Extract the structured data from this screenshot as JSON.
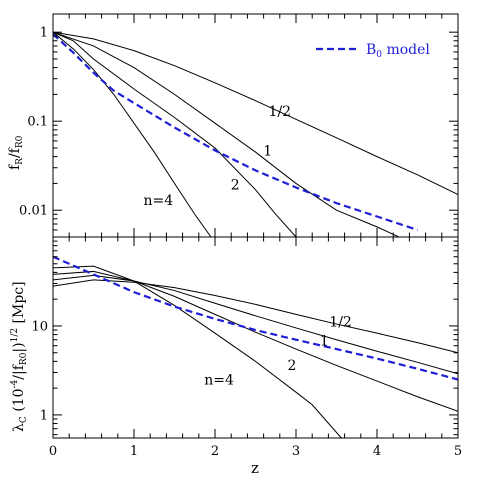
{
  "chart_data": [
    {
      "type": "line",
      "panel": "top",
      "ylabel": "f_R/f_R0",
      "ylabel_main": "f",
      "ylabel_sub1": "R",
      "ylabel_sub2": "R0",
      "yscale": "log",
      "ylim": [
        0.005,
        1.6
      ],
      "xlim": [
        0,
        5
      ],
      "yticks": [
        {
          "value": 1,
          "label": "1"
        },
        {
          "value": 0.1,
          "label": "0.1"
        },
        {
          "value": 0.01,
          "label": "0.01"
        }
      ],
      "legend": {
        "label_main": "B",
        "label_sub": "0",
        "label_rest": " model",
        "placement": "top-right",
        "color": "#1f1fd6"
      },
      "series": [
        {
          "name": "n=1/2",
          "label": "1/2",
          "label_at": [
            2.8,
            0.115
          ],
          "color": "#000000",
          "dashed": false,
          "x": [
            0,
            0.5,
            1,
            1.5,
            2,
            2.5,
            3,
            3.5,
            4,
            4.5,
            5
          ],
          "y": [
            1,
            0.84,
            0.62,
            0.42,
            0.27,
            0.17,
            0.105,
            0.065,
            0.04,
            0.025,
            0.015
          ]
        },
        {
          "name": "n=1",
          "label": "1",
          "label_at": [
            2.65,
            0.041
          ],
          "color": "#000000",
          "dashed": false,
          "x": [
            0,
            0.5,
            1,
            1.5,
            2,
            2.5,
            3,
            3.5,
            4,
            4.5
          ],
          "y": [
            1,
            0.7,
            0.4,
            0.2,
            0.095,
            0.045,
            0.02,
            0.01,
            0.0065,
            0.004
          ]
        },
        {
          "name": "n=2",
          "label": "2",
          "label_at": [
            2.25,
            0.017
          ],
          "color": "#000000",
          "dashed": false,
          "x": [
            0,
            0.25,
            0.5,
            1,
            1.5,
            2,
            2.5,
            2.75,
            3
          ],
          "y": [
            1,
            0.8,
            0.5,
            0.23,
            0.11,
            0.05,
            0.017,
            0.009,
            0.005
          ]
        },
        {
          "name": "n=4",
          "label": "n=4",
          "label_at": [
            1.3,
            0.0115
          ],
          "color": "#000000",
          "dashed": false,
          "x": [
            0,
            0.25,
            0.5,
            0.75,
            1,
            1.25,
            1.5,
            1.75,
            1.95
          ],
          "y": [
            1,
            0.65,
            0.38,
            0.2,
            0.095,
            0.045,
            0.02,
            0.009,
            0.005
          ]
        },
        {
          "name": "B0 model",
          "label": "",
          "color": "#1f1fd6",
          "dashed": true,
          "x": [
            0,
            0.25,
            0.5,
            0.75,
            1,
            1.5,
            2,
            2.5,
            3,
            3.5,
            4,
            4.5
          ],
          "y": [
            0.95,
            0.59,
            0.35,
            0.22,
            0.16,
            0.085,
            0.047,
            0.028,
            0.018,
            0.012,
            0.0085,
            0.006
          ]
        }
      ]
    },
    {
      "type": "line",
      "panel": "bottom",
      "xlabel": "z",
      "ylabel_main": "λ",
      "ylabel_sub1": "C",
      "ylabel_mid": " (10",
      "ylabel_sup1": "-4",
      "ylabel_mid2": "/|f",
      "ylabel_sub2": "R0",
      "ylabel_mid3": "|)",
      "ylabel_sup2": "1/2",
      "ylabel_unit": " [Mpc]",
      "yscale": "log",
      "ylim": [
        0.55,
        100
      ],
      "xlim": [
        0,
        5
      ],
      "yticks": [
        {
          "value": 10,
          "label": "10"
        },
        {
          "value": 1,
          "label": "1"
        }
      ],
      "xticks": [
        {
          "value": 0,
          "label": "0"
        },
        {
          "value": 1,
          "label": "1"
        },
        {
          "value": 2,
          "label": "2"
        },
        {
          "value": 3,
          "label": "3"
        },
        {
          "value": 4,
          "label": "4"
        },
        {
          "value": 5,
          "label": "5"
        }
      ],
      "series": [
        {
          "name": "n=1/2",
          "label": "1/2",
          "label_at": [
            3.55,
            9.9
          ],
          "color": "#000000",
          "dashed": false,
          "x": [
            0,
            0.5,
            1,
            1.5,
            2,
            2.5,
            3,
            3.5,
            4,
            4.5,
            5
          ],
          "y": [
            28,
            33,
            31,
            27,
            22,
            17.5,
            13.5,
            10.5,
            8.3,
            6.5,
            5
          ]
        },
        {
          "name": "n=1",
          "label": "1",
          "label_at": [
            3.35,
            6.0
          ],
          "color": "#000000",
          "dashed": false,
          "x": [
            0,
            0.5,
            1,
            1.5,
            2,
            2.5,
            3,
            3.5,
            4,
            4.5,
            5
          ],
          "y": [
            33,
            37,
            32,
            25,
            18,
            13,
            9.5,
            7,
            5.2,
            3.9,
            2.9
          ]
        },
        {
          "name": "n=2",
          "label": "2",
          "label_at": [
            2.95,
            3.2
          ],
          "color": "#000000",
          "dashed": false,
          "x": [
            0,
            0.5,
            1,
            1.5,
            2,
            2.5,
            3,
            3.5,
            4,
            4.5,
            5
          ],
          "y": [
            38,
            41,
            32,
            21.5,
            13.5,
            8.5,
            5.5,
            3.6,
            2.4,
            1.6,
            1.1
          ]
        },
        {
          "name": "n=4",
          "label": "n=4",
          "label_at": [
            2.05,
            2.2
          ],
          "color": "#000000",
          "dashed": false,
          "x": [
            0,
            0.5,
            1,
            1.5,
            2,
            2.5,
            3,
            3.2,
            3.56
          ],
          "y": [
            45,
            47,
            32,
            17,
            8.3,
            4,
            1.8,
            1.3,
            0.55
          ]
        },
        {
          "name": "B0 model",
          "label": "",
          "color": "#1f1fd6",
          "dashed": true,
          "x": [
            0,
            0.5,
            1,
            1.5,
            2,
            2.5,
            3,
            3.5,
            4,
            4.5,
            5
          ],
          "y": [
            60,
            38,
            24,
            16.5,
            12,
            9,
            7,
            5.5,
            4.3,
            3.3,
            2.5
          ]
        }
      ]
    }
  ]
}
